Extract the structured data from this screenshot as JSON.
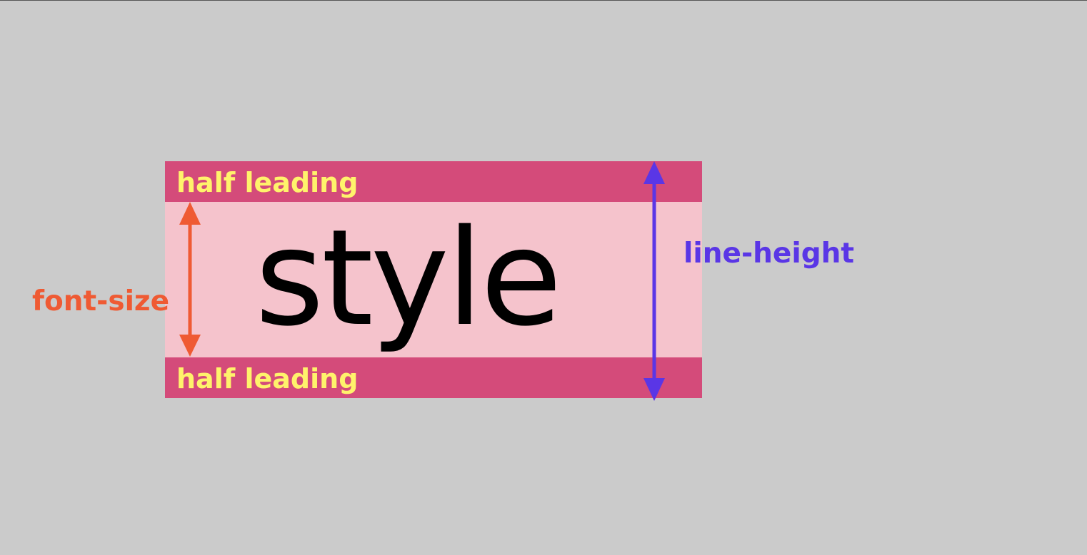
{
  "labels": {
    "half_leading_top": "half leading",
    "half_leading_bottom": "half leading",
    "sample_text": "style",
    "font_size": "font-size",
    "line_height": "line-height"
  },
  "colors": {
    "background": "#cbcbcb",
    "half_leading_band": "#d44b7a",
    "content_area": "#f5c3cc",
    "half_leading_text": "#fff36b",
    "sample_text": "#000000",
    "font_size_accent": "#ef5a33",
    "line_height_accent": "#5a36e6"
  }
}
